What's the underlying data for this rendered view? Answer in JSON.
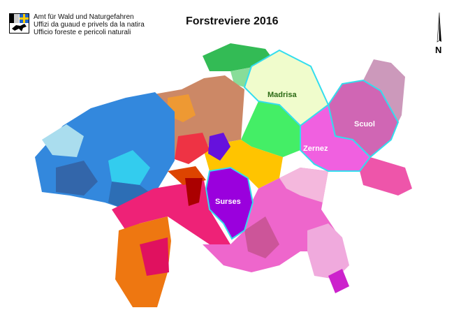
{
  "header": {
    "organization_lines": [
      "Amt für Wald und Naturgefahren",
      "Uffizi da guaud e privels da la natira",
      "Ufficio foreste e pericoli naturali"
    ],
    "title": "Forstreviere 2016"
  },
  "north_arrow": {
    "label": "N"
  },
  "highlight_color": "#33ddee",
  "regions": {
    "madrisa": {
      "label": "Madrisa",
      "color": "#f0fccc",
      "label_color": "#2b6a14"
    },
    "scuol": {
      "label": "Scuol",
      "color": "#d066b4",
      "label_color": "#ffffff"
    },
    "zernez": {
      "label": "Zernez",
      "color": "#f060e0",
      "label_color": "#ffffff"
    },
    "surses": {
      "label": "Surses",
      "color": "#9a00dd",
      "label_color": "#ffffff"
    }
  }
}
